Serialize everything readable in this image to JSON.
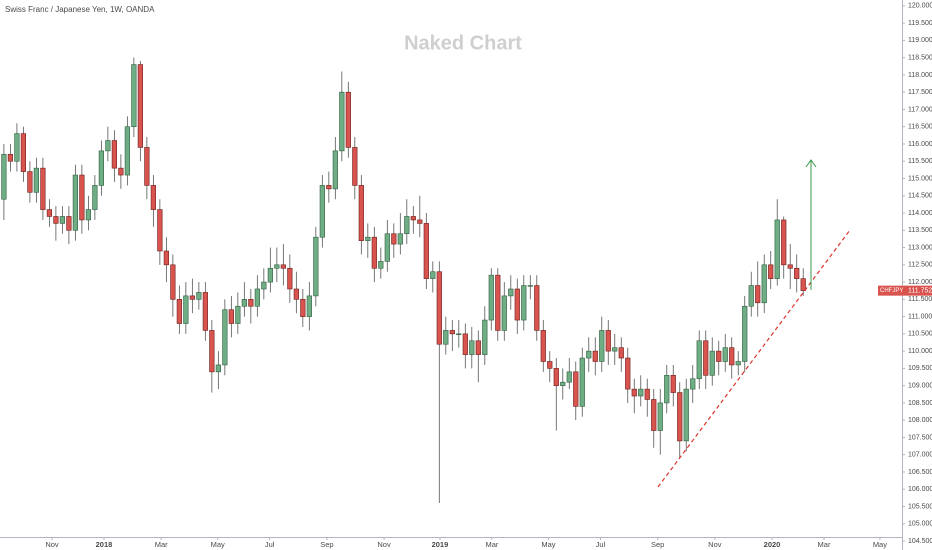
{
  "chart_data": {
    "type": "candlestick",
    "title": "Swiss Franc / Japanese Yen, 1W, OANDA",
    "watermark": "Naked Chart",
    "symbol": "CHFJPY",
    "up_color": "#6fae85",
    "down_color": "#d9534f",
    "grid": false,
    "ylim": [
      104.24,
      120.17
    ],
    "yticks": [
      {
        "value": 120,
        "label": "120.000"
      },
      {
        "value": 119.5,
        "label": "119.500"
      },
      {
        "value": 119,
        "label": "119.000"
      },
      {
        "value": 118.5,
        "label": "118.500"
      },
      {
        "value": 118,
        "label": "118.000"
      },
      {
        "value": 117.5,
        "label": "117.500"
      },
      {
        "value": 117,
        "label": "117.000"
      },
      {
        "value": 116.5,
        "label": "116.500"
      },
      {
        "value": 116,
        "label": "116.000"
      },
      {
        "value": 115.5,
        "label": "115.500"
      },
      {
        "value": 115,
        "label": "115.000"
      },
      {
        "value": 114.5,
        "label": "114.500"
      },
      {
        "value": 114,
        "label": "114.000"
      },
      {
        "value": 113.5,
        "label": "113.500"
      },
      {
        "value": 113,
        "label": "113.000"
      },
      {
        "value": 112.5,
        "label": "112.500"
      },
      {
        "value": 112,
        "label": "112.000"
      },
      {
        "value": 111.5,
        "label": "111.500"
      },
      {
        "value": 111,
        "label": "111.000"
      },
      {
        "value": 110.5,
        "label": "110.500"
      },
      {
        "value": 110,
        "label": "110.000"
      },
      {
        "value": 109.5,
        "label": "109.500"
      },
      {
        "value": 109,
        "label": "109.000"
      },
      {
        "value": 108.5,
        "label": "108.500"
      },
      {
        "value": 108,
        "label": "108.000"
      },
      {
        "value": 107.5,
        "label": "107.500"
      },
      {
        "value": 107,
        "label": "107.000"
      },
      {
        "value": 106.5,
        "label": "106.500"
      },
      {
        "value": 106,
        "label": "106.000"
      },
      {
        "value": 105.5,
        "label": "105.500"
      },
      {
        "value": 105,
        "label": "105.000"
      },
      {
        "value": 104.5,
        "label": "104.500"
      }
    ],
    "xlim": [
      -0.6,
      138.2
    ],
    "xticks": [
      {
        "value": 7.4,
        "label": "Nov"
      },
      {
        "value": 15.4,
        "label": "2018"
      },
      {
        "value": 24.2,
        "label": "Mar"
      },
      {
        "value": 32.9,
        "label": "May"
      },
      {
        "value": 40.9,
        "label": "Jul"
      },
      {
        "value": 49.7,
        "label": "Sep"
      },
      {
        "value": 58.5,
        "label": "Nov"
      },
      {
        "value": 67.1,
        "label": "2019"
      },
      {
        "value": 75.1,
        "label": "Mar"
      },
      {
        "value": 83.8,
        "label": "May"
      },
      {
        "value": 91.8,
        "label": "Jul"
      },
      {
        "value": 100.6,
        "label": "Sep"
      },
      {
        "value": 109.4,
        "label": "Nov"
      },
      {
        "value": 118.2,
        "label": "2020"
      },
      {
        "value": 126.2,
        "label": "Mar"
      },
      {
        "value": 134.8,
        "label": "May"
      }
    ],
    "open": [
      114.4,
      115.7,
      115.5,
      116.3,
      115.2,
      114.6,
      115.3,
      114.1,
      113.9,
      113.7,
      113.9,
      113.5,
      115.1,
      113.8,
      114.1,
      114.8,
      115.8,
      116.1,
      115.3,
      115.1,
      116.5,
      118.3,
      115.9,
      114.8,
      114.1,
      112.9,
      112.5,
      111.5,
      110.8,
      111.6,
      111.5,
      111.7,
      110.6,
      109.4,
      109.6,
      111.2,
      110.8,
      111.3,
      111.5,
      111.3,
      111.8,
      112.0,
      112.4,
      112.5,
      112.4,
      111.8,
      111.5,
      111.0,
      111.6,
      113.3,
      114.8,
      114.7,
      115.8,
      117.5,
      115.9,
      114.8,
      113.2,
      113.3,
      112.4,
      112.6,
      113.4,
      113.1,
      113.4,
      113.9,
      113.8,
      113.7,
      112.1,
      112.3,
      110.2,
      110.6,
      110.5,
      110.5,
      109.9,
      110.3,
      109.9,
      110.9,
      112.2,
      110.6,
      111.6,
      111.8,
      110.9,
      111.9,
      111.9,
      110.6,
      109.7,
      109.5,
      109.0,
      109.1,
      109.4,
      108.4,
      109.8,
      110.0,
      109.7,
      110.6,
      110.0,
      110.1,
      109.8,
      108.9,
      108.7,
      108.9,
      108.6,
      107.7,
      108.5,
      109.3,
      108.8,
      107.4,
      108.9,
      109.2,
      110.3,
      109.3,
      110.0,
      109.7,
      110.1,
      109.6,
      109.7,
      111.3,
      111.9,
      111.4,
      112.5,
      112.1,
      113.8,
      112.5,
      112.4,
      112.1
    ],
    "high": [
      116.0,
      116.0,
      116.6,
      116.5,
      115.5,
      115.6,
      115.6,
      114.4,
      114.2,
      114.2,
      114.2,
      115.4,
      115.4,
      114.5,
      115.1,
      116.1,
      116.5,
      116.4,
      115.7,
      116.8,
      118.5,
      118.4,
      116.2,
      115.1,
      114.4,
      113.3,
      112.8,
      111.9,
      112.0,
      112.1,
      112.0,
      112.0,
      110.9,
      110.0,
      111.5,
      111.6,
      111.7,
      112.0,
      111.8,
      112.2,
      112.4,
      113.0,
      113.0,
      113.1,
      112.8,
      112.3,
      111.8,
      112.0,
      113.6,
      115.1,
      115.2,
      116.2,
      118.1,
      117.8,
      116.2,
      115.1,
      113.7,
      113.6,
      113.0,
      113.8,
      113.7,
      114.0,
      114.4,
      114.2,
      114.5,
      114.0,
      112.6,
      112.6,
      111.0,
      110.9,
      110.9,
      110.8,
      110.7,
      110.6,
      111.3,
      112.4,
      112.4,
      112.0,
      112.2,
      112.1,
      112.2,
      112.2,
      112.2,
      110.9,
      110.0,
      109.8,
      109.5,
      109.8,
      109.7,
      110.1,
      110.4,
      110.4,
      111.0,
      110.9,
      110.5,
      110.4,
      110.1,
      109.2,
      109.3,
      109.2,
      108.9,
      108.9,
      109.6,
      109.6,
      109.1,
      109.2,
      109.6,
      110.6,
      110.6,
      110.4,
      110.3,
      110.5,
      110.4,
      110.0,
      111.6,
      112.3,
      112.6,
      112.8,
      112.9,
      114.4,
      113.9,
      113.1,
      112.8,
      112.4
    ],
    "low": [
      113.8,
      115.2,
      115.2,
      114.9,
      114.3,
      114.3,
      113.8,
      113.6,
      113.2,
      113.4,
      113.1,
      113.2,
      113.4,
      113.5,
      113.8,
      114.5,
      115.5,
      114.9,
      114.7,
      114.8,
      116.2,
      115.5,
      114.4,
      113.6,
      112.5,
      112.0,
      111.0,
      110.5,
      110.5,
      111.1,
      111.2,
      110.3,
      108.8,
      108.9,
      109.3,
      110.4,
      110.5,
      111.0,
      110.8,
      111.0,
      111.5,
      111.7,
      112.0,
      111.9,
      111.4,
      111.1,
      110.7,
      110.6,
      111.3,
      113.0,
      114.3,
      114.4,
      115.5,
      115.6,
      114.4,
      112.8,
      112.7,
      112.0,
      112.1,
      112.3,
      112.7,
      112.8,
      113.1,
      113.4,
      113.3,
      111.8,
      111.7,
      105.6,
      109.9,
      110.0,
      110.1,
      109.5,
      109.5,
      109.1,
      109.6,
      110.6,
      110.3,
      110.3,
      111.2,
      110.5,
      110.6,
      111.5,
      110.3,
      109.4,
      109.1,
      107.7,
      108.6,
      108.9,
      108.0,
      108.1,
      109.4,
      109.3,
      109.4,
      109.6,
      109.6,
      109.4,
      108.5,
      108.2,
      108.4,
      108.1,
      107.2,
      107.0,
      108.2,
      108.4,
      106.9,
      107.1,
      108.5,
      108.9,
      108.9,
      109.0,
      109.3,
      109.4,
      109.2,
      109.3,
      109.4,
      111.0,
      111.0,
      111.1,
      111.8,
      111.9,
      112.1,
      111.8,
      111.7,
      111.6
    ],
    "close": [
      115.7,
      115.5,
      116.3,
      115.2,
      114.6,
      115.3,
      114.1,
      113.9,
      113.7,
      113.9,
      113.5,
      115.1,
      113.8,
      114.1,
      114.8,
      115.8,
      116.1,
      115.3,
      115.1,
      116.5,
      118.3,
      115.9,
      114.8,
      114.1,
      112.9,
      112.5,
      111.5,
      110.8,
      111.6,
      111.5,
      111.7,
      110.6,
      109.4,
      109.6,
      111.2,
      110.8,
      111.3,
      111.5,
      111.3,
      111.8,
      112.0,
      112.4,
      112.5,
      112.4,
      111.8,
      111.5,
      111.0,
      111.6,
      113.3,
      114.8,
      114.7,
      115.8,
      117.5,
      115.9,
      114.8,
      113.2,
      113.3,
      112.4,
      112.6,
      113.4,
      113.1,
      113.4,
      113.9,
      113.8,
      113.7,
      112.1,
      112.3,
      110.2,
      110.6,
      110.5,
      110.5,
      109.9,
      110.3,
      109.9,
      110.9,
      112.2,
      110.6,
      111.6,
      111.8,
      110.9,
      111.9,
      111.9,
      110.6,
      109.7,
      109.5,
      109.0,
      109.1,
      109.4,
      108.4,
      109.8,
      110.0,
      109.7,
      110.6,
      110.0,
      110.1,
      109.8,
      108.9,
      108.7,
      108.9,
      108.6,
      107.7,
      108.5,
      109.3,
      108.8,
      107.4,
      108.9,
      109.2,
      110.3,
      109.3,
      110.0,
      109.7,
      110.1,
      109.6,
      109.7,
      111.3,
      111.9,
      111.4,
      112.5,
      112.1,
      113.8,
      112.5,
      112.4,
      112.1,
      111.752
    ]
  }
}
